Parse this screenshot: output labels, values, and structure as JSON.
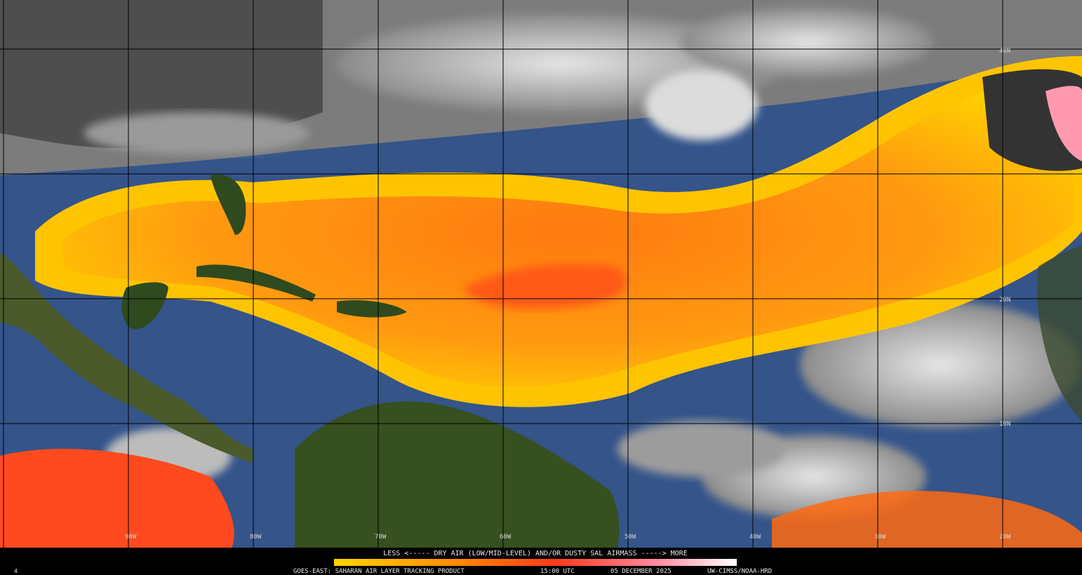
{
  "map": {
    "latitude_labels": [
      "40N",
      "20N",
      "10N"
    ],
    "longitude_labels": [
      "90W",
      "80W",
      "70W",
      "60W",
      "50W",
      "40W",
      "30W",
      "20W"
    ],
    "legend": {
      "text": "LESS <----- DRY AIR (LOW/MID-LEVEL) AND/OR DUSTY SAL AIRMASS -----> MORE"
    },
    "footer": {
      "frame": "4",
      "product": "GOES-EAST: SAHARAN AIR LAYER TRACKING PRODUCT",
      "time": "15:00 UTC",
      "date": "05 DECEMBER 2025",
      "credit": "UW-CIMSS/NOAA-HRD"
    }
  }
}
